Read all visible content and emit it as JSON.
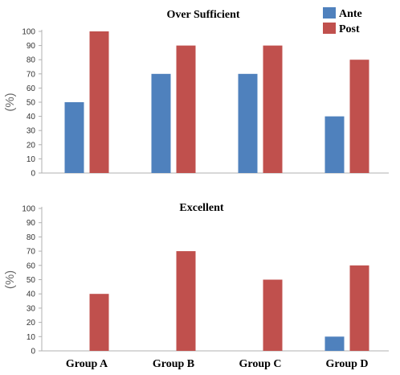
{
  "chart_data": [
    {
      "type": "bar",
      "title": "Over Sufficient",
      "ylabel": "(%)",
      "ylim": [
        0,
        100
      ],
      "yticks": [
        "0",
        "10",
        "20",
        "30",
        "40",
        "50",
        "60",
        "70",
        "80",
        "90",
        "100"
      ],
      "categories": [
        "Group A",
        "Group B",
        "Group C",
        "Group D"
      ],
      "show_categories": false,
      "legend": {
        "placement": "top-right"
      },
      "series": [
        {
          "name": "Ante",
          "color": "#4f81bd",
          "values": [
            50,
            70,
            70,
            40
          ]
        },
        {
          "name": "Post",
          "color": "#c0504d",
          "values": [
            100,
            90,
            90,
            80
          ]
        }
      ]
    },
    {
      "type": "bar",
      "title": "Excellent",
      "ylabel": "(%)",
      "ylim": [
        0,
        100
      ],
      "yticks": [
        "0",
        "10",
        "20",
        "30",
        "40",
        "50",
        "60",
        "70",
        "80",
        "90",
        "100"
      ],
      "categories": [
        "Group A",
        "Group B",
        "Group C",
        "Group D"
      ],
      "show_categories": true,
      "series": [
        {
          "name": "Ante",
          "color": "#4f81bd",
          "values": [
            0,
            0,
            0,
            10
          ]
        },
        {
          "name": "Post",
          "color": "#c0504d",
          "values": [
            40,
            70,
            50,
            60
          ]
        }
      ]
    }
  ]
}
